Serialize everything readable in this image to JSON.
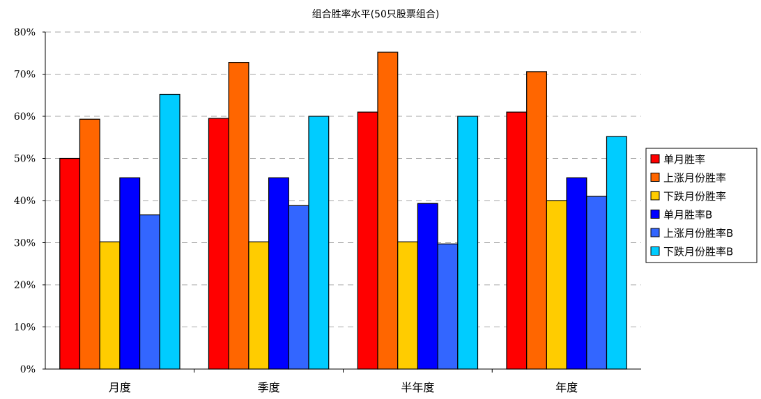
{
  "chart_data": {
    "type": "bar",
    "title": "组合胜率水平(50只股票组合)",
    "xlabel": "",
    "ylabel": "",
    "categories": [
      "月度",
      "季度",
      "半年度",
      "年度"
    ],
    "ylim": [
      0,
      80
    ],
    "yticks": [
      "0%",
      "10%",
      "20%",
      "30%",
      "40%",
      "50%",
      "60%",
      "70%",
      "80%"
    ],
    "grid": "horizontal-dashed",
    "legend_position": "right",
    "series": [
      {
        "name": "单月胜率",
        "color": "#FF0000",
        "values": [
          50,
          59.5,
          61,
          61
        ]
      },
      {
        "name": "上涨月份胜率",
        "color": "#FF6600",
        "values": [
          59.3,
          72.8,
          75.2,
          70.6
        ]
      },
      {
        "name": "下跌月份胜率",
        "color": "#FFCC00",
        "values": [
          30.2,
          30.2,
          30.2,
          40
        ]
      },
      {
        "name": "单月胜率B",
        "color": "#0000FF",
        "values": [
          45.4,
          45.4,
          39.3,
          45.4
        ]
      },
      {
        "name": "上涨月份胜率B",
        "color": "#3366FF",
        "values": [
          36.6,
          38.8,
          29.7,
          41
        ]
      },
      {
        "name": "下跌月份胜率B",
        "color": "#00CCFF",
        "values": [
          65.2,
          60,
          60,
          55.2
        ]
      }
    ]
  }
}
